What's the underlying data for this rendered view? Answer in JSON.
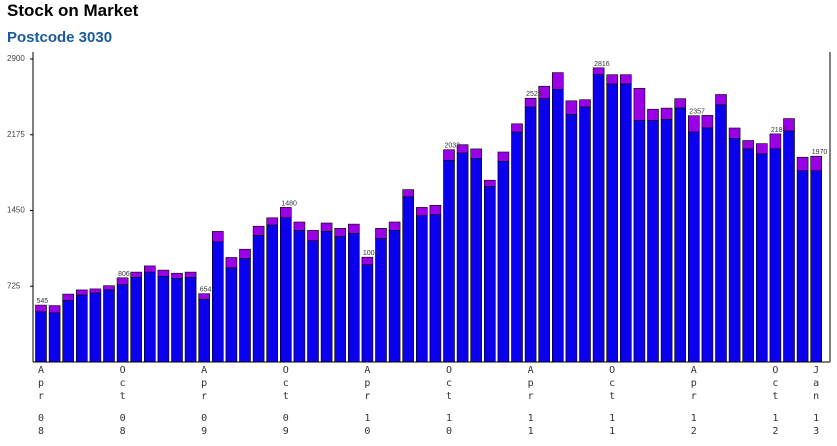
{
  "title": "Stock on Market",
  "subtitle": "Postcode 3030",
  "chart_data": {
    "type": "bar",
    "stacked": true,
    "ylim": [
      0,
      2950
    ],
    "yticks": [
      725,
      1450,
      2175,
      2900
    ],
    "grid": false,
    "colors": {
      "base": "#0a00ee",
      "top": "#9a00e6",
      "edge": "#000000",
      "axis": "#000000"
    },
    "totals": [
      545,
      540,
      650,
      690,
      700,
      730,
      806,
      860,
      920,
      880,
      850,
      860,
      654,
      1250,
      1000,
      1080,
      1300,
      1380,
      1480,
      1340,
      1260,
      1330,
      1280,
      1320,
      1003,
      1280,
      1340,
      1650,
      1480,
      1500,
      2032,
      2080,
      2040,
      1740,
      2010,
      2280,
      2525,
      2640,
      2770,
      2500,
      2510,
      2816,
      2750,
      2750,
      2620,
      2420,
      2430,
      2520,
      2357,
      2360,
      2560,
      2240,
      2120,
      2090,
      2183,
      2330,
      1960,
      1970
    ],
    "bases": [
      480,
      470,
      590,
      640,
      660,
      690,
      740,
      810,
      860,
      820,
      800,
      810,
      600,
      1150,
      900,
      990,
      1210,
      1310,
      1380,
      1260,
      1160,
      1250,
      1200,
      1230,
      930,
      1180,
      1260,
      1580,
      1400,
      1410,
      1930,
      2000,
      1950,
      1680,
      1920,
      2200,
      2440,
      2520,
      2610,
      2370,
      2440,
      2750,
      2660,
      2660,
      2310,
      2310,
      2320,
      2430,
      2200,
      2240,
      2460,
      2140,
      2040,
      1990,
      2040,
      2210,
      1830,
      1830
    ],
    "data_labels": [
      {
        "index": 0,
        "label": "545"
      },
      {
        "index": 6,
        "label": "806"
      },
      {
        "index": 12,
        "label": "654"
      },
      {
        "index": 18,
        "label": "1480"
      },
      {
        "index": 24,
        "label": "1003"
      },
      {
        "index": 30,
        "label": "2032"
      },
      {
        "index": 36,
        "label": "2525"
      },
      {
        "index": 41,
        "label": "2816"
      },
      {
        "index": 48,
        "label": "2357"
      },
      {
        "index": 54,
        "label": "2183"
      },
      {
        "index": 57,
        "label": "1970"
      }
    ],
    "xticks": [
      {
        "index": 0,
        "month": "Apr",
        "year": "08"
      },
      {
        "index": 6,
        "month": "Oct",
        "year": "08"
      },
      {
        "index": 12,
        "month": "Apr",
        "year": "09"
      },
      {
        "index": 18,
        "month": "Oct",
        "year": "09"
      },
      {
        "index": 24,
        "month": "Apr",
        "year": "10"
      },
      {
        "index": 30,
        "month": "Oct",
        "year": "10"
      },
      {
        "index": 36,
        "month": "Apr",
        "year": "11"
      },
      {
        "index": 42,
        "month": "Oct",
        "year": "11"
      },
      {
        "index": 48,
        "month": "Apr",
        "year": "12"
      },
      {
        "index": 54,
        "month": "Oct",
        "year": "12"
      },
      {
        "index": 57,
        "month": "Jan",
        "year": "13"
      }
    ]
  }
}
